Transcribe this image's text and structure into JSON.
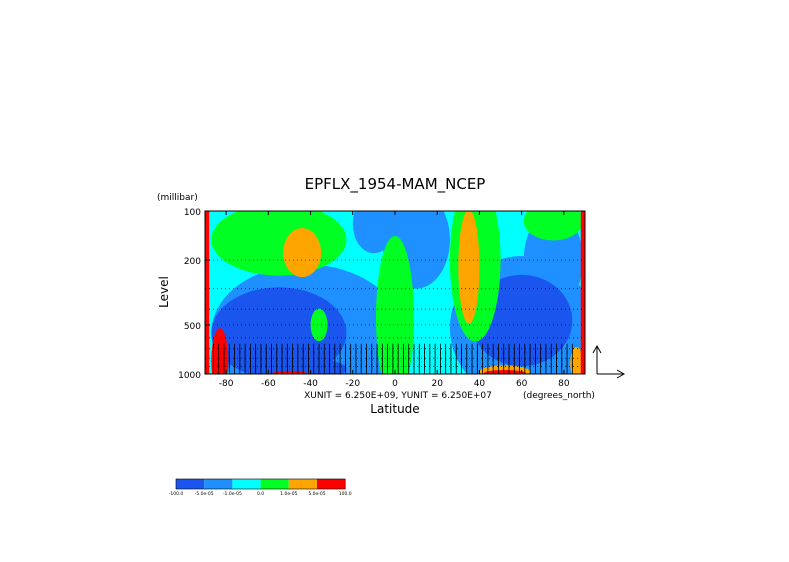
{
  "chart_data": {
    "type": "heatmap",
    "title": "EPFLX_1954-MAM_NCEP",
    "xlabel": "Latitude",
    "ylabel": "Level",
    "yunit": "(millibar)",
    "xunit": "(degrees_north)",
    "scale_note": "XUNIT = 6.250E+09, YUNIT = 6.250E+07",
    "x_ticks": [
      "-80",
      "-60",
      "-40",
      "-20",
      "0",
      "20",
      "40",
      "60",
      "80"
    ],
    "x_tick_values": [
      -80,
      -60,
      -40,
      -20,
      0,
      20,
      40,
      60,
      80
    ],
    "y_ticks": [
      "100",
      "200",
      "500",
      "1000"
    ],
    "y_tick_values": [
      100,
      200,
      500,
      1000
    ],
    "xlim": [
      -90,
      90
    ],
    "ylim": [
      1000,
      100
    ],
    "y_scale": "log",
    "grid": "dotted horizontal",
    "legend": {
      "position": "bottom-left",
      "labels": [
        "-100.0",
        "-5.0e-05",
        "-1.0e-05",
        "0.0",
        "1.0e-05",
        "5.0e-05",
        "100.0"
      ],
      "colors": [
        "#1a55ee",
        "#1e90ff",
        "#00ffff",
        "#00ff22",
        "#ffa500",
        "#ff0000"
      ]
    },
    "fields": [
      {
        "level": "outer",
        "color": "#00ffff"
      },
      {
        "level": "-5e-05 to -1e-05",
        "color": "#1e90ff",
        "regions": [
          {
            "lat": -42,
            "p": 560,
            "rx": 45,
            "ry": 0.42
          },
          {
            "lat": 60,
            "p": 520,
            "rx": 34,
            "ry": 0.44
          },
          {
            "lat": 10,
            "p": 150,
            "rx": 16,
            "ry": 0.3
          },
          {
            "lat": 75,
            "p": 200,
            "rx": 14,
            "ry": 0.3
          },
          {
            "lat": -10,
            "p": 120,
            "rx": 10,
            "ry": 0.18
          }
        ]
      },
      {
        "level": "< -5e-05",
        "color": "#1a55ee",
        "regions": [
          {
            "lat": -55,
            "p": 560,
            "rx": 32,
            "ry": 0.28
          },
          {
            "lat": 60,
            "p": 470,
            "rx": 24,
            "ry": 0.28
          },
          {
            "lat": -45,
            "p": 930,
            "rx": 22,
            "ry": 0.07
          }
        ]
      },
      {
        "level": "0 to 1e-05",
        "color": "#00ff22",
        "regions": [
          {
            "lat": -55,
            "p": 150,
            "rx": 32,
            "ry": 0.22
          },
          {
            "lat": 38,
            "p": 200,
            "rx": 12,
            "ry": 0.5
          },
          {
            "lat": 0,
            "p": 450,
            "rx": 9,
            "ry": 0.5
          },
          {
            "lat": 75,
            "p": 115,
            "rx": 14,
            "ry": 0.12
          },
          {
            "lat": -36,
            "p": 500,
            "rx": 4,
            "ry": 0.1
          }
        ]
      },
      {
        "level": "1e-05 to 5e-05",
        "color": "#ffa500",
        "regions": [
          {
            "lat": -44,
            "p": 180,
            "rx": 9,
            "ry": 0.15
          },
          {
            "lat": 35,
            "p": 220,
            "rx": 5,
            "ry": 0.35
          },
          {
            "lat": 52,
            "p": 970,
            "rx": 12,
            "ry": 0.04
          },
          {
            "lat": 86,
            "p": 860,
            "rx": 3,
            "ry": 0.1
          }
        ]
      },
      {
        "level": "> 5e-05",
        "color": "#ff0000",
        "regions": [
          {
            "lat": -83,
            "p": 830,
            "rx": 4,
            "ry": 0.2
          },
          {
            "lat": 52,
            "p": 990,
            "rx": 10,
            "ry": 0.02
          },
          {
            "lat": -50,
            "p": 990,
            "rx": 8,
            "ry": 0.015
          }
        ]
      }
    ],
    "boundary_strips": [
      {
        "side": "left",
        "lat_from": -90,
        "lat_to": -88,
        "color": "#ff0000"
      },
      {
        "side": "right",
        "lat_from": 88,
        "lat_to": 90,
        "color": "#ff0000"
      }
    ],
    "vectors": {
      "lat_from": -86,
      "lat_to": 86,
      "lat_step": 2.5,
      "levels": [
        925,
        850,
        775,
        700
      ],
      "direction": "upward"
    }
  }
}
